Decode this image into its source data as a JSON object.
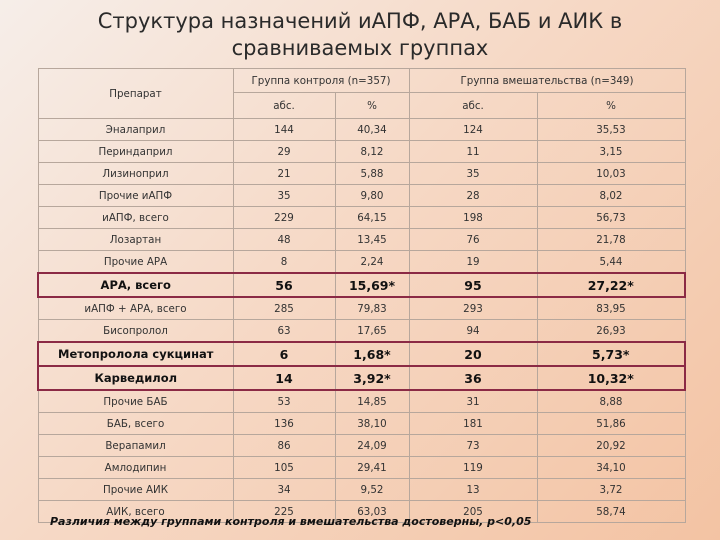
{
  "title_line1": "Структура назначений иАПФ, АРА, БАБ и АИК в",
  "title_line2": "сравниваемых группах",
  "header": {
    "drug": "Препарат",
    "control": "Группа контроля (n=357)",
    "intervention": "Группа вмешательства (n=349)",
    "abs1": "абс.",
    "pct1": "%",
    "abs2": "абс.",
    "pct2": "%"
  },
  "rows": [
    {
      "name": "Эналаприл",
      "c_abs": "144",
      "c_pct": "40,34",
      "i_abs": "124",
      "i_pct": "35,53"
    },
    {
      "name": "Периндаприл",
      "c_abs": "29",
      "c_pct": "8,12",
      "i_abs": "11",
      "i_pct": "3,15"
    },
    {
      "name": "Лизиноприл",
      "c_abs": "21",
      "c_pct": "5,88",
      "i_abs": "35",
      "i_pct": "10,03"
    },
    {
      "name": "Прочие иАПФ",
      "c_abs": "35",
      "c_pct": "9,80",
      "i_abs": "28",
      "i_pct": "8,02"
    },
    {
      "name": "иАПФ, всего",
      "c_abs": "229",
      "c_pct": "64,15",
      "i_abs": "198",
      "i_pct": "56,73"
    },
    {
      "name": "Лозартан",
      "c_abs": "48",
      "c_pct": "13,45",
      "i_abs": "76",
      "i_pct": "21,78"
    },
    {
      "name": "Прочие АРА",
      "c_abs": "8",
      "c_pct": "2,24",
      "i_abs": "19",
      "i_pct": "5,44"
    },
    {
      "name": "АРА, всего",
      "c_abs": "56",
      "c_pct": "15,69*",
      "i_abs": "95",
      "i_pct": "27,22*"
    },
    {
      "name": "иАПФ + АРА, всего",
      "c_abs": "285",
      "c_pct": "79,83",
      "i_abs": "293",
      "i_pct": "83,95"
    },
    {
      "name": "Бисопролол",
      "c_abs": "63",
      "c_pct": "17,65",
      "i_abs": "94",
      "i_pct": "26,93"
    },
    {
      "name": "Метопролола сукцинат",
      "c_abs": "6",
      "c_pct": "1,68*",
      "i_abs": "20",
      "i_pct": "5,73*"
    },
    {
      "name": "Карведилол",
      "c_abs": "14",
      "c_pct": "3,92*",
      "i_abs": "36",
      "i_pct": "10,32*"
    },
    {
      "name": "Прочие БАБ",
      "c_abs": "53",
      "c_pct": "14,85",
      "i_abs": "31",
      "i_pct": "8,88"
    },
    {
      "name": "БАБ, всего",
      "c_abs": "136",
      "c_pct": "38,10",
      "i_abs": "181",
      "i_pct": "51,86"
    },
    {
      "name": "Верапамил",
      "c_abs": "86",
      "c_pct": "24,09",
      "i_abs": "73",
      "i_pct": "20,92"
    },
    {
      "name": "Амлодипин",
      "c_abs": "105",
      "c_pct": "29,41",
      "i_abs": "119",
      "i_pct": "34,10"
    },
    {
      "name": "Прочие АИК",
      "c_abs": "34",
      "c_pct": "9,52",
      "i_abs": "13",
      "i_pct": "3,72"
    },
    {
      "name": "АИК, всего",
      "c_abs": "225",
      "c_pct": "63,03",
      "i_abs": "205",
      "i_pct": "58,74"
    }
  ],
  "footnote": "Различия между группами контроля и вмешательства достоверны, р<0,05"
}
